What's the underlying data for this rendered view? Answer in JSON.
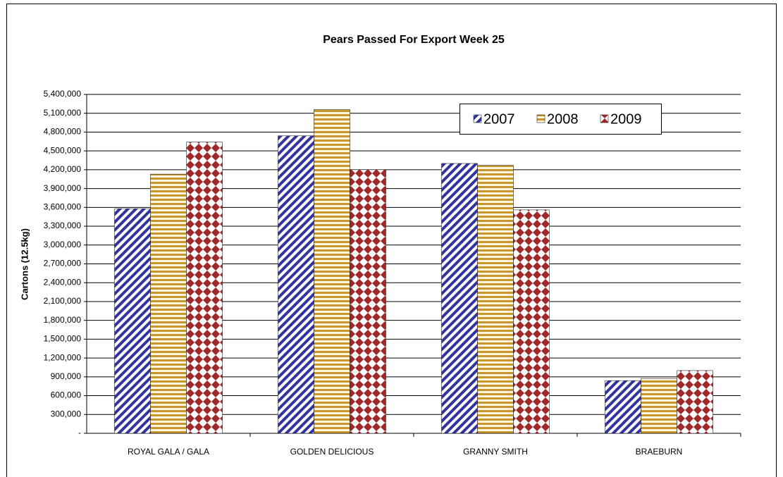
{
  "chart_data": {
    "type": "bar",
    "title": "Pears Passed For Export Week 25",
    "y_label": "Cartons (12.5kg)",
    "categories": [
      "ROYAL GALA / GALA",
      "GOLDEN DELICIOUS",
      "GRANNY SMITH",
      "BRAEBURN"
    ],
    "series": [
      {
        "name": "2007",
        "color": "#3333a0",
        "pattern": "diagonal",
        "values": [
          3580000,
          4740000,
          4300000,
          840000
        ]
      },
      {
        "name": "2008",
        "color": "#c8962e",
        "pattern": "horizontal",
        "values": [
          4130000,
          5160000,
          4270000,
          875000
        ]
      },
      {
        "name": "2009",
        "color": "#a02828",
        "pattern": "diamond",
        "values": [
          4640000,
          4200000,
          3560000,
          1000000
        ]
      }
    ],
    "ylim": [
      0,
      5400000
    ],
    "yticks": [
      {
        "value": 0,
        "label": "-"
      },
      {
        "value": 300000,
        "label": "300,000"
      },
      {
        "value": 600000,
        "label": "600,000"
      },
      {
        "value": 900000,
        "label": "900,000"
      },
      {
        "value": 1200000,
        "label": "1,200,000"
      },
      {
        "value": 1500000,
        "label": "1,500,000"
      },
      {
        "value": 1800000,
        "label": "1,800,000"
      },
      {
        "value": 2100000,
        "label": "2,100,000"
      },
      {
        "value": 2400000,
        "label": "2,400,000"
      },
      {
        "value": 2700000,
        "label": "2,700,000"
      },
      {
        "value": 3000000,
        "label": "3,000,000"
      },
      {
        "value": 3300000,
        "label": "3,300,000"
      },
      {
        "value": 3600000,
        "label": "3,600,000"
      },
      {
        "value": 3900000,
        "label": "3,900,000"
      },
      {
        "value": 4200000,
        "label": "4,200,000"
      },
      {
        "value": 4500000,
        "label": "4,500,000"
      },
      {
        "value": 4800000,
        "label": "4,800,000"
      },
      {
        "value": 5100000,
        "label": "5,100,000"
      },
      {
        "value": 5400000,
        "label": "5,400,000"
      }
    ],
    "grid": true,
    "legend": "top-right"
  }
}
